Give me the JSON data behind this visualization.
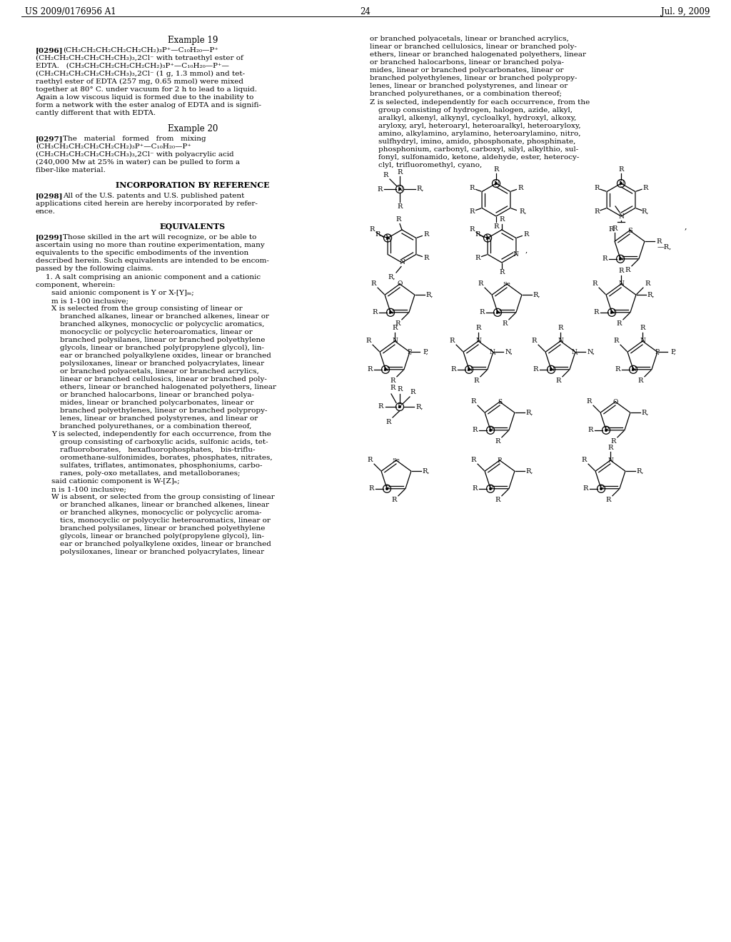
{
  "bg": "#ffffff",
  "header_left": "US 2009/0176956 A1",
  "header_right": "Jul. 9, 2009",
  "page_num": "24"
}
